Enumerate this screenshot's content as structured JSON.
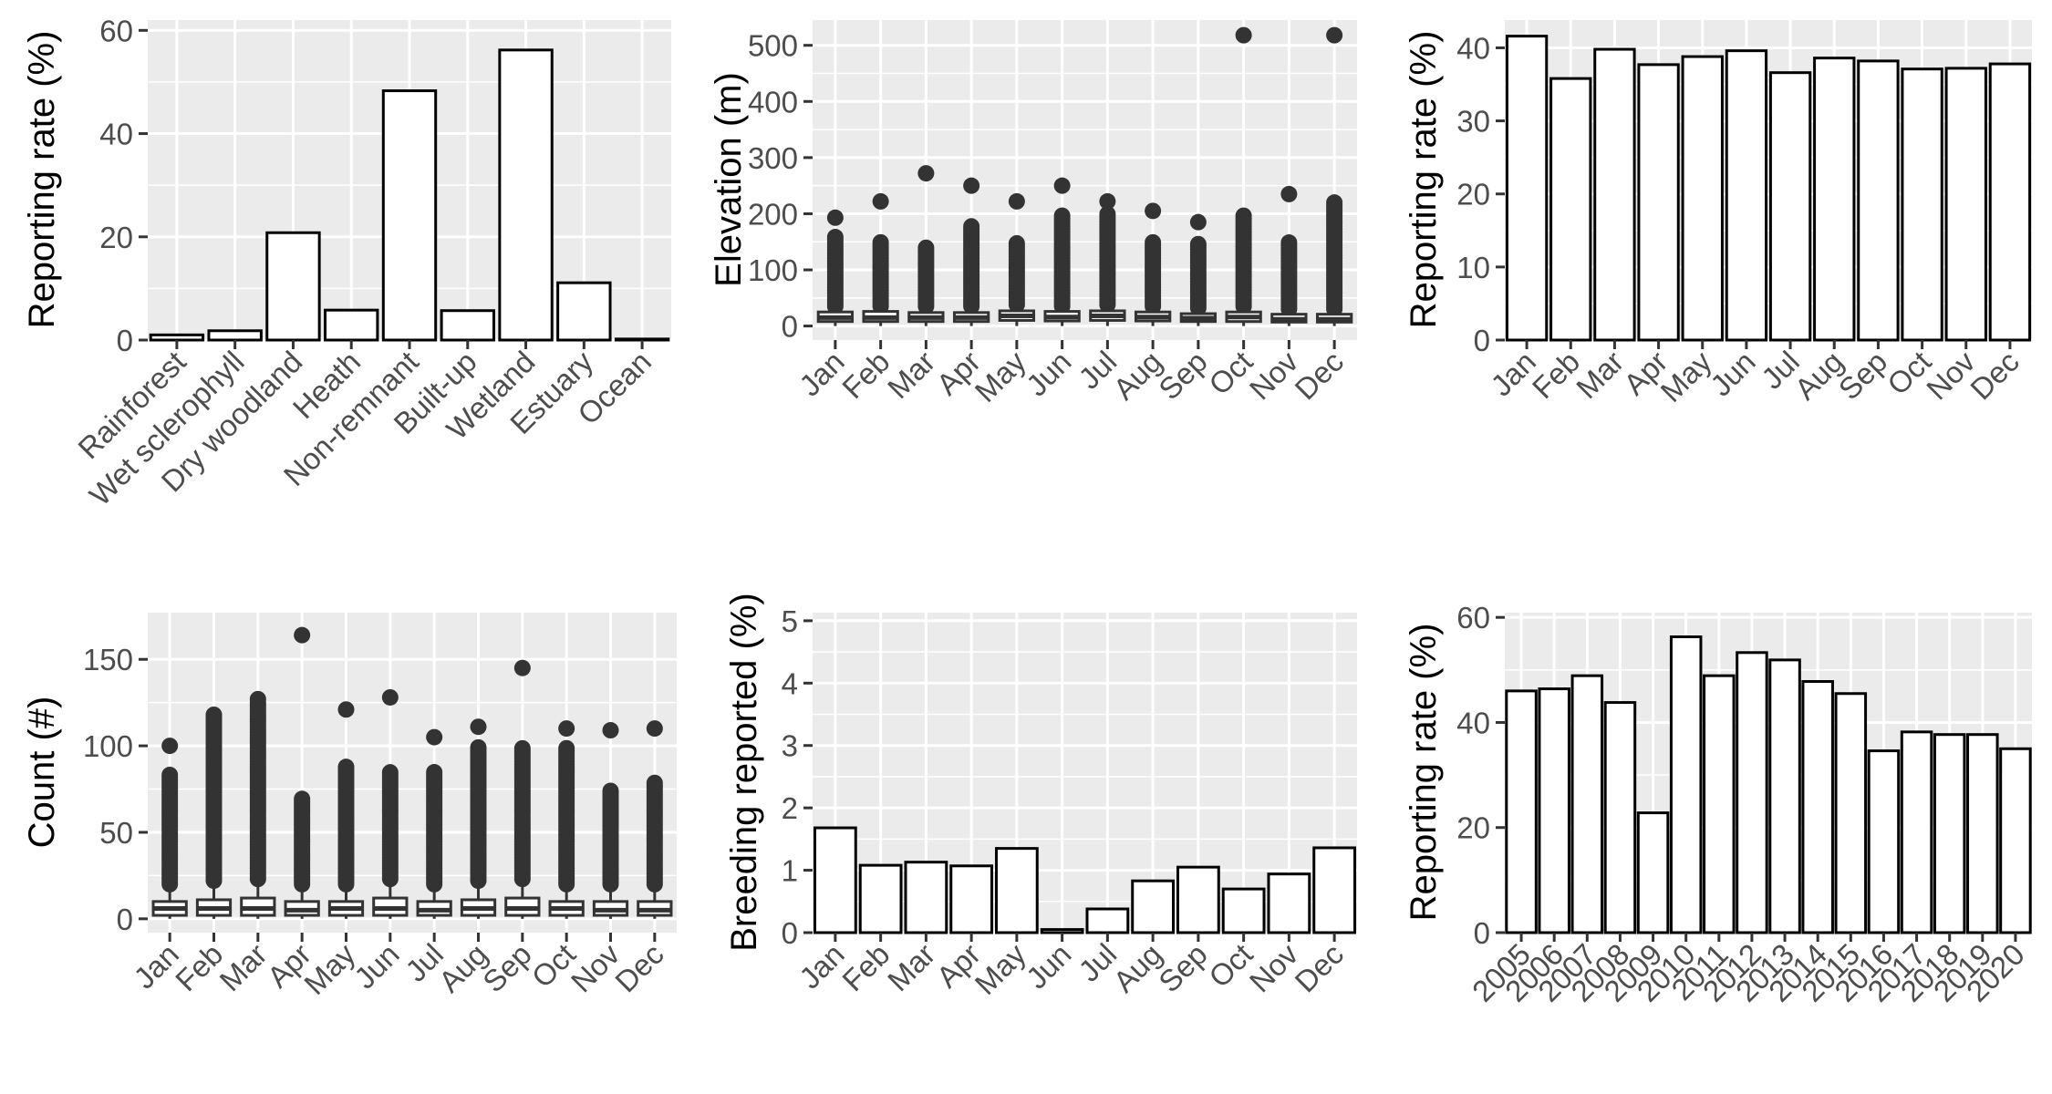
{
  "colors": {
    "panel_background": "#ebebeb",
    "gridline": "#ffffff",
    "bar_fill": "#ffffff",
    "bar_outline": "#000000",
    "box_color": "#333333",
    "tick_text": "#4d4d4d",
    "axis_title": "#000000"
  },
  "chart_data": [
    {
      "type": "bar",
      "categories": [
        "Rainforest",
        "Wet sclerophyll",
        "Dry woodland",
        "Heath",
        "Non-remnant",
        "Built-up",
        "Wetland",
        "Estuary",
        "Ocean"
      ],
      "values": [
        1.0,
        1.8,
        20.8,
        5.8,
        48.3,
        5.7,
        56.2,
        11.1,
        0.2
      ],
      "xlabel": "",
      "ylabel": "Reporting rate (%)",
      "ylim": [
        0,
        62
      ],
      "yticks": [
        0,
        20,
        40,
        60
      ],
      "grid": true,
      "legend": "none"
    },
    {
      "type": "box",
      "categories": [
        "Jan",
        "Feb",
        "Mar",
        "Apr",
        "May",
        "Jun",
        "Jul",
        "Aug",
        "Sep",
        "Oct",
        "Nov",
        "Dec"
      ],
      "boxes": [
        {
          "q1": 8,
          "median": 15,
          "q3": 25,
          "low": 0,
          "high": 30,
          "outliers_from": 35,
          "outliers_to": 160,
          "max_outlier": 193
        },
        {
          "q1": 8,
          "median": 15,
          "q3": 26,
          "low": 0,
          "high": 31,
          "outliers_from": 35,
          "outliers_to": 150,
          "max_outlier": 222
        },
        {
          "q1": 8,
          "median": 15,
          "q3": 24,
          "low": 0,
          "high": 29,
          "outliers_from": 35,
          "outliers_to": 140,
          "max_outlier": 272
        },
        {
          "q1": 8,
          "median": 15,
          "q3": 24,
          "low": 0,
          "high": 29,
          "outliers_from": 35,
          "outliers_to": 180,
          "max_outlier": 250
        },
        {
          "q1": 10,
          "median": 18,
          "q3": 27,
          "low": 0,
          "high": 32,
          "outliers_from": 38,
          "outliers_to": 150,
          "max_outlier": 222
        },
        {
          "q1": 9,
          "median": 16,
          "q3": 26,
          "low": 0,
          "high": 31,
          "outliers_from": 35,
          "outliers_to": 200,
          "max_outlier": 250
        },
        {
          "q1": 10,
          "median": 18,
          "q3": 27,
          "low": 0,
          "high": 32,
          "outliers_from": 38,
          "outliers_to": 200,
          "max_outlier": 222
        },
        {
          "q1": 9,
          "median": 16,
          "q3": 25,
          "low": 0,
          "high": 30,
          "outliers_from": 35,
          "outliers_to": 150,
          "max_outlier": 205
        },
        {
          "q1": 8,
          "median": 14,
          "q3": 22,
          "low": 0,
          "high": 27,
          "outliers_from": 32,
          "outliers_to": 150,
          "max_outlier": 185
        },
        {
          "q1": 8,
          "median": 16,
          "q3": 25,
          "low": 0,
          "high": 30,
          "outliers_from": 35,
          "outliers_to": 200,
          "max_outlier": 518
        },
        {
          "q1": 7,
          "median": 12,
          "q3": 21,
          "low": 0,
          "high": 26,
          "outliers_from": 30,
          "outliers_to": 150,
          "max_outlier": 235
        },
        {
          "q1": 7,
          "median": 12,
          "q3": 21,
          "low": 0,
          "high": 26,
          "outliers_from": 30,
          "outliers_to": 220,
          "max_outlier": 518
        }
      ],
      "xlabel": "",
      "ylabel": "Elevation (m)",
      "ylim": [
        -25,
        545
      ],
      "yticks": [
        0,
        100,
        200,
        300,
        400,
        500
      ],
      "grid": true,
      "legend": "none"
    },
    {
      "type": "bar",
      "categories": [
        "Jan",
        "Feb",
        "Mar",
        "Apr",
        "May",
        "Jun",
        "Jul",
        "Aug",
        "Sep",
        "Oct",
        "Nov",
        "Dec"
      ],
      "values": [
        41.6,
        35.8,
        39.8,
        37.7,
        38.8,
        39.6,
        36.6,
        38.6,
        38.2,
        37.1,
        37.2,
        37.8
      ],
      "xlabel": "",
      "ylabel": "Reporting rate (%)",
      "ylim": [
        0,
        43.8
      ],
      "yticks": [
        0,
        10,
        20,
        30,
        40
      ],
      "grid": true,
      "legend": "none"
    },
    {
      "type": "box",
      "categories": [
        "Jan",
        "Feb",
        "Mar",
        "Apr",
        "May",
        "Jun",
        "Jul",
        "Aug",
        "Sep",
        "Oct",
        "Nov",
        "Dec"
      ],
      "boxes": [
        {
          "q1": 2,
          "median": 6,
          "q3": 10,
          "low": 0,
          "high": 18,
          "outliers_from": 20,
          "outliers_to": 84,
          "max_outlier": 100
        },
        {
          "q1": 2,
          "median": 6,
          "q3": 11,
          "low": 0,
          "high": 19,
          "outliers_from": 22,
          "outliers_to": 118,
          "max_outlier": 118
        },
        {
          "q1": 2,
          "median": 6,
          "q3": 12,
          "low": 0,
          "high": 20,
          "outliers_from": 23,
          "outliers_to": 125,
          "max_outlier": 127
        },
        {
          "q1": 2,
          "median": 5,
          "q3": 10,
          "low": 0,
          "high": 18,
          "outliers_from": 20,
          "outliers_to": 70,
          "max_outlier": 164
        },
        {
          "q1": 2,
          "median": 6,
          "q3": 10,
          "low": 0,
          "high": 18,
          "outliers_from": 20,
          "outliers_to": 88,
          "max_outlier": 121
        },
        {
          "q1": 2,
          "median": 6,
          "q3": 12,
          "low": 0,
          "high": 20,
          "outliers_from": 23,
          "outliers_to": 86,
          "max_outlier": 128
        },
        {
          "q1": 2,
          "median": 5,
          "q3": 10,
          "low": 0,
          "high": 18,
          "outliers_from": 20,
          "outliers_to": 86,
          "max_outlier": 105
        },
        {
          "q1": 2,
          "median": 6,
          "q3": 11,
          "low": 0,
          "high": 19,
          "outliers_from": 22,
          "outliers_to": 100,
          "max_outlier": 111
        },
        {
          "q1": 2,
          "median": 6,
          "q3": 12,
          "low": 0,
          "high": 20,
          "outliers_from": 23,
          "outliers_to": 100,
          "max_outlier": 145
        },
        {
          "q1": 2,
          "median": 6,
          "q3": 10,
          "low": 0,
          "high": 18,
          "outliers_from": 20,
          "outliers_to": 100,
          "max_outlier": 110
        },
        {
          "q1": 2,
          "median": 5,
          "q3": 10,
          "low": 0,
          "high": 18,
          "outliers_from": 20,
          "outliers_to": 75,
          "max_outlier": 109
        },
        {
          "q1": 2,
          "median": 5,
          "q3": 10,
          "low": 0,
          "high": 18,
          "outliers_from": 20,
          "outliers_to": 80,
          "max_outlier": 110
        }
      ],
      "xlabel": "",
      "ylabel": "Count (#)",
      "ylim": [
        -8,
        177
      ],
      "yticks": [
        0,
        50,
        100,
        150
      ],
      "grid": true,
      "legend": "none"
    },
    {
      "type": "bar",
      "categories": [
        "Jan",
        "Feb",
        "Mar",
        "Apr",
        "May",
        "Jun",
        "Jul",
        "Aug",
        "Sep",
        "Oct",
        "Nov",
        "Dec"
      ],
      "values": [
        1.68,
        1.08,
        1.13,
        1.07,
        1.35,
        0.05,
        0.38,
        0.83,
        1.05,
        0.7,
        0.94,
        1.36
      ],
      "xlabel": "",
      "ylabel": "Breeding reported (%)",
      "ylim": [
        0,
        5.13
      ],
      "yticks": [
        0,
        1,
        2,
        3,
        4,
        5
      ],
      "grid": true,
      "legend": "none"
    },
    {
      "type": "bar",
      "categories": [
        "2005",
        "2006",
        "2007",
        "2008",
        "2009",
        "2010",
        "2011",
        "2012",
        "2013",
        "2014",
        "2015",
        "2016",
        "2017",
        "2018",
        "2019",
        "2020"
      ],
      "values": [
        46.0,
        46.4,
        48.9,
        43.8,
        22.8,
        56.3,
        48.9,
        53.3,
        51.9,
        47.8,
        45.5,
        34.6,
        38.2,
        37.7,
        37.7,
        35.0
      ],
      "xlabel": "",
      "ylabel": "Reporting rate (%)",
      "ylim": [
        0,
        60.9
      ],
      "yticks": [
        0,
        20,
        40,
        60
      ],
      "grid": true,
      "legend": "none"
    }
  ]
}
